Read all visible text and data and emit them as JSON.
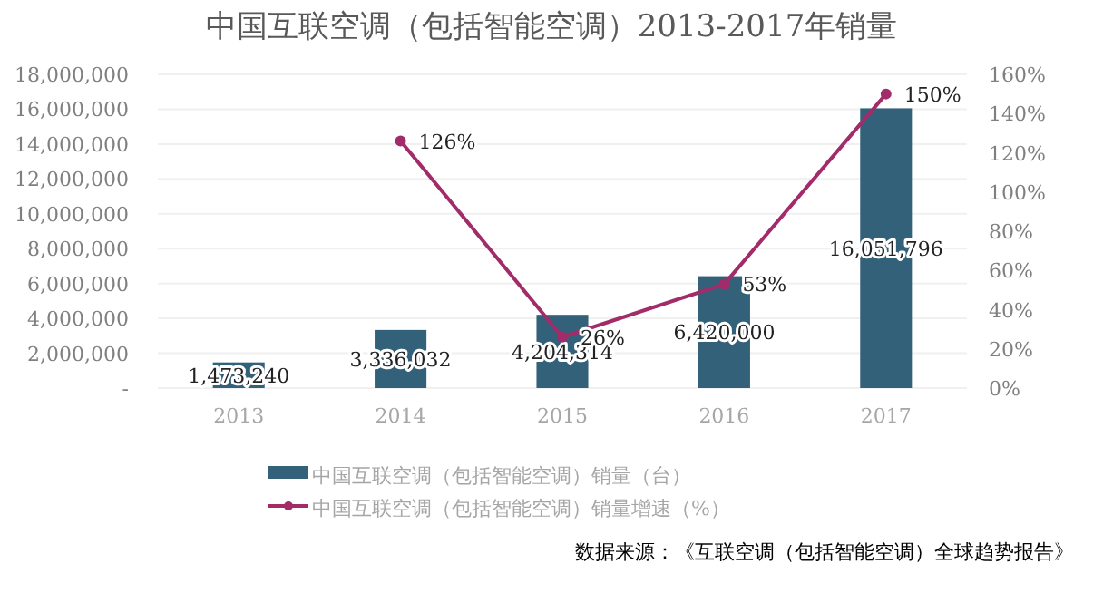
{
  "chart_data": {
    "type": "bar",
    "title": "中国互联空调（包括智能空调）2013-2017年销量",
    "categories": [
      "2013",
      "2014",
      "2015",
      "2016",
      "2017"
    ],
    "series": [
      {
        "name": "中国互联空调（包括智能空调）销量（台）",
        "color": "#336179",
        "values": [
          1473240,
          3336032,
          4204314,
          6420000,
          16051796
        ],
        "value_labels": [
          "1,473,240",
          "3,336,032",
          "4,204,314",
          "6,420,000",
          "16,051,796"
        ]
      },
      {
        "name": "中国互联空调（包括智能空调）销量增速（%）",
        "type": "line",
        "axis": "y2",
        "color": "#a22c6a",
        "marker": "circle",
        "values": [
          null,
          126,
          26,
          53,
          150
        ],
        "value_labels": [
          null,
          "126%",
          "26%",
          "53%",
          "150%"
        ]
      }
    ],
    "ylim": [
      0,
      18000000
    ],
    "yticks": [
      {
        "value": 0,
        "label": "-"
      },
      {
        "value": 2000000,
        "label": "2,000,000"
      },
      {
        "value": 4000000,
        "label": "4,000,000"
      },
      {
        "value": 6000000,
        "label": "6,000,000"
      },
      {
        "value": 8000000,
        "label": "8,000,000"
      },
      {
        "value": 10000000,
        "label": "10,000,000"
      },
      {
        "value": 12000000,
        "label": "12,000,000"
      },
      {
        "value": 14000000,
        "label": "14,000,000"
      },
      {
        "value": 16000000,
        "label": "16,000,000"
      },
      {
        "value": 18000000,
        "label": "18,000,000"
      }
    ],
    "y2lim": [
      0,
      160
    ],
    "y2ticks": [
      {
        "value": 0,
        "label": "0%"
      },
      {
        "value": 20,
        "label": "20%"
      },
      {
        "value": 40,
        "label": "40%"
      },
      {
        "value": 60,
        "label": "60%"
      },
      {
        "value": 80,
        "label": "80%"
      },
      {
        "value": 100,
        "label": "100%"
      },
      {
        "value": 120,
        "label": "120%"
      },
      {
        "value": 140,
        "label": "140%"
      },
      {
        "value": 160,
        "label": "160%"
      }
    ],
    "grid": "y",
    "legend": "bottom",
    "annotations": [
      "数据来源：《互联空调（包括智能空调）全球趋势报告》"
    ]
  }
}
